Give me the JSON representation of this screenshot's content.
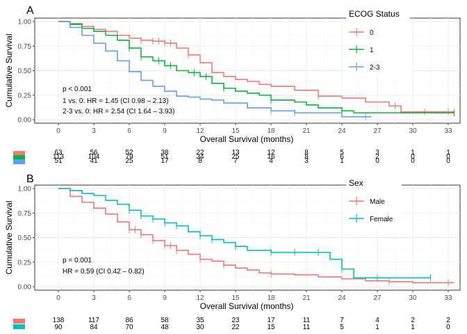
{
  "chart_data": [
    {
      "type": "line",
      "panel_label": "A",
      "xlabel": "Overall Survival (months)",
      "ylabel": "Cumulative Survival",
      "xlim": [
        -2,
        34
      ],
      "ylim": [
        0,
        1
      ],
      "x_ticks": [
        0,
        3,
        6,
        9,
        12,
        15,
        18,
        21,
        24,
        27,
        30,
        33
      ],
      "y_ticks": [
        0,
        0.25,
        0.5,
        0.75,
        1
      ],
      "y_tick_labels": [
        "0.00",
        "0.25",
        "0.50",
        "0.75",
        "1.00"
      ],
      "grid": true,
      "legend_title": "ECOG Status",
      "legend_position": "top-right",
      "annotations": [
        "p < 0.001",
        "1 vs. 0: HR = 1.45 (CI 0.98 – 2.13)",
        "2-3 vs. 0: HR = 2.54 (CI 1.64 – 3.93)"
      ],
      "series": [
        {
          "name": "0",
          "color": "#F8766D",
          "x": [
            0,
            1,
            2,
            3,
            4,
            5,
            6,
            7,
            8,
            9,
            10,
            11,
            12,
            13,
            14,
            15,
            16,
            17,
            18,
            20,
            22,
            24,
            26,
            28,
            29,
            33.5
          ],
          "y": [
            1,
            0.98,
            0.95,
            0.92,
            0.9,
            0.86,
            0.83,
            0.81,
            0.8,
            0.78,
            0.73,
            0.66,
            0.58,
            0.48,
            0.44,
            0.41,
            0.39,
            0.36,
            0.34,
            0.3,
            0.24,
            0.22,
            0.18,
            0.14,
            0.08,
            0.08
          ],
          "censor_x": [
            7,
            8,
            8.5,
            9,
            9.5,
            11,
            22,
            28.5,
            31,
            33
          ]
        },
        {
          "name": "1",
          "color": "#00BA38",
          "x": [
            0,
            1,
            2,
            3,
            4,
            5,
            6,
            7,
            8,
            9,
            10,
            11,
            12,
            13,
            14,
            15,
            16,
            17,
            18,
            20,
            21,
            22,
            24,
            25,
            33.5
          ],
          "y": [
            1,
            0.97,
            0.93,
            0.9,
            0.86,
            0.81,
            0.73,
            0.64,
            0.6,
            0.55,
            0.5,
            0.48,
            0.44,
            0.37,
            0.32,
            0.29,
            0.27,
            0.25,
            0.2,
            0.18,
            0.15,
            0.12,
            0.09,
            0.07,
            0.07
          ],
          "censor_x": [
            6,
            7,
            8.5,
            9.5,
            11.5,
            12.5,
            14,
            18,
            24,
            33.5
          ]
        },
        {
          "name": "2-3",
          "color": "#619CFF",
          "x": [
            0,
            1,
            2,
            3,
            4,
            5,
            6,
            7,
            8,
            9,
            10,
            11,
            12,
            13,
            14,
            16,
            18,
            20,
            24,
            26.5
          ],
          "y": [
            1,
            0.94,
            0.86,
            0.78,
            0.7,
            0.6,
            0.49,
            0.4,
            0.34,
            0.29,
            0.24,
            0.23,
            0.21,
            0.2,
            0.17,
            0.12,
            0.09,
            0.07,
            0.03,
            0.03
          ],
          "censor_x": [
            18,
            20,
            26
          ]
        }
      ],
      "risk_table": {
        "times": [
          0,
          3,
          6,
          9,
          12,
          15,
          18,
          21,
          24,
          27,
          30,
          33
        ],
        "rows": [
          {
            "name": "0",
            "color": "#F8766D",
            "values": [
              "63",
              "56",
              "52",
              "38",
              "22",
              "13",
              "12",
              "8",
              "5",
              "3",
              "1",
              "1"
            ]
          },
          {
            "name": "1",
            "color": "#00BA38",
            "values": [
              "113",
              "104",
              "79",
              "51",
              "34",
              "25",
              "16",
              "8",
              "6",
              "2",
              "0",
              "0"
            ]
          },
          {
            "name": "2-3",
            "color": "#619CFF",
            "values": [
              "51",
              "41",
              "25",
              "17",
              "8",
              "7",
              "4",
              "3",
              "1",
              "0",
              "0",
              "0"
            ]
          }
        ]
      }
    },
    {
      "type": "line",
      "panel_label": "B",
      "xlabel": "Overall Survival (months)",
      "ylabel": "Cumulative Survival",
      "xlim": [
        -2,
        34
      ],
      "ylim": [
        0,
        1
      ],
      "x_ticks": [
        0,
        3,
        6,
        9,
        12,
        15,
        18,
        21,
        24,
        27,
        30,
        33
      ],
      "y_ticks": [
        0,
        0.25,
        0.5,
        0.75,
        1
      ],
      "y_tick_labels": [
        "0.00",
        "0.25",
        "0.50",
        "0.75",
        "1.00"
      ],
      "grid": true,
      "legend_title": "Sex",
      "legend_position": "top-right",
      "annotations": [
        "p = 0.001",
        "HR = 0.59 (CI 0.42 – 0.82)"
      ],
      "series": [
        {
          "name": "Male",
          "color": "#F8766D",
          "x": [
            0,
            1,
            2,
            3,
            4,
            5,
            6,
            7,
            8,
            9,
            10,
            11,
            12,
            13,
            14,
            15,
            16,
            17,
            18,
            20,
            22,
            24,
            26,
            28,
            30,
            33.5
          ],
          "y": [
            1,
            0.92,
            0.86,
            0.8,
            0.74,
            0.66,
            0.58,
            0.53,
            0.47,
            0.42,
            0.37,
            0.33,
            0.28,
            0.26,
            0.22,
            0.19,
            0.17,
            0.14,
            0.13,
            0.12,
            0.1,
            0.08,
            0.06,
            0.05,
            0.04,
            0.04
          ],
          "censor_x": [
            6,
            6.5,
            7,
            8,
            9,
            9.5,
            10,
            12,
            14,
            18,
            28,
            33
          ]
        },
        {
          "name": "Female",
          "color": "#00BFC4",
          "x": [
            0,
            1,
            2,
            3,
            4,
            5,
            6,
            7,
            8,
            9,
            10,
            11,
            12,
            13,
            14,
            15,
            16,
            18,
            20,
            23,
            24,
            25,
            31.5
          ],
          "y": [
            1,
            0.98,
            0.95,
            0.93,
            0.88,
            0.84,
            0.78,
            0.72,
            0.69,
            0.65,
            0.62,
            0.56,
            0.52,
            0.48,
            0.45,
            0.41,
            0.37,
            0.35,
            0.35,
            0.28,
            0.18,
            0.09,
            0.09
          ],
          "censor_x": [
            6,
            7,
            8,
            9,
            10,
            12,
            13,
            15,
            18,
            20,
            22,
            24,
            27,
            31.5
          ]
        }
      ],
      "risk_table": {
        "times": [
          0,
          3,
          6,
          9,
          12,
          15,
          18,
          21,
          24,
          27,
          30,
          33
        ],
        "rows": [
          {
            "name": "Male",
            "color": "#F8766D",
            "values": [
              "138",
              "117",
              "86",
              "58",
              "35",
              "23",
              "17",
              "11",
              "7",
              "4",
              "2",
              "2"
            ]
          },
          {
            "name": "Female",
            "color": "#00BFC4",
            "values": [
              "90",
              "84",
              "70",
              "48",
              "30",
              "22",
              "15",
              "11",
              "5",
              "1",
              "1",
              "0"
            ]
          }
        ]
      }
    }
  ]
}
